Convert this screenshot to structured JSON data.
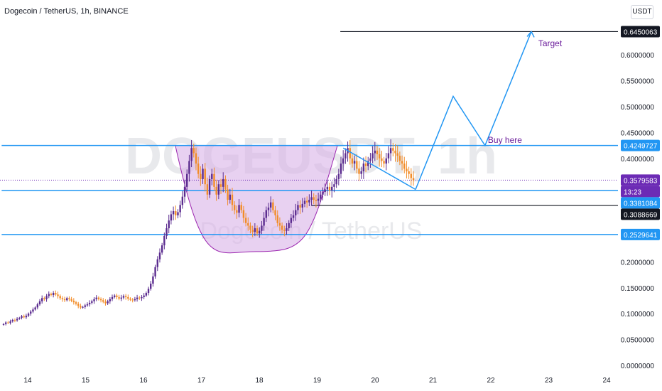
{
  "header": {
    "symbol_title": "Dogecoin / TetherUS, 1h, BINANCE",
    "currency_label": "USDT"
  },
  "watermark": {
    "ticker": "DOGEUSDT, 1h",
    "name": "Dogecoin / TetherUS"
  },
  "colors": {
    "candle_up": "#5b2c8f",
    "candle_down": "#f28c28",
    "level_line": "#2196f3",
    "black_line": "#131722",
    "cup_fill": "#d9b3e8",
    "cup_stroke": "#9c27b0",
    "annotation_text": "#6a1b9a",
    "current_price_tag": "#6c2bb5",
    "axis_text": "#131722"
  },
  "chart_data": {
    "type": "candlestick",
    "y_ticks": [
      "0.0000000",
      "0.0500000",
      "0.1000000",
      "0.1500000",
      "0.2000000",
      "0.4000000",
      "0.4500000",
      "0.5000000",
      "0.5500000",
      "0.6000000"
    ],
    "x_ticks": [
      "14",
      "15",
      "16",
      "17",
      "18",
      "19",
      "20",
      "21",
      "22",
      "23",
      "24"
    ],
    "y_range": [
      0,
      0.7
    ],
    "x_range": [
      13.55,
      24.5
    ],
    "price_tags": [
      {
        "label": "0.6450063",
        "value": 0.645,
        "style": "black"
      },
      {
        "label": "0.4249727",
        "value": 0.425,
        "style": "blue"
      },
      {
        "label": "0.3579583",
        "value": 0.358,
        "style": "purple"
      },
      {
        "label": "13:23",
        "value": 0.338,
        "style": "purple"
      },
      {
        "label": "0.3381084",
        "value": 0.338,
        "style": "blue"
      },
      {
        "label": "0.3088669",
        "value": 0.309,
        "style": "black"
      },
      {
        "label": "0.2529641",
        "value": 0.253,
        "style": "blue"
      }
    ],
    "horizontal_levels": [
      {
        "value": 0.425,
        "x_from": 13.55,
        "color": "blue"
      },
      {
        "value": 0.338,
        "x_from": 13.55,
        "color": "blue"
      },
      {
        "value": 0.253,
        "x_from": 13.55,
        "color": "blue"
      },
      {
        "value": 0.309,
        "x_from": 18.9,
        "color": "black"
      },
      {
        "value": 0.645,
        "x_from": 19.4,
        "color": "black"
      }
    ],
    "current_price": 0.358,
    "cup": {
      "x_start": 16.55,
      "x_end": 19.35,
      "rim": 0.425,
      "bottom": 0.22
    },
    "projection_path": [
      [
        20.7,
        0.34
      ],
      [
        21.35,
        0.52
      ],
      [
        21.9,
        0.425
      ],
      [
        22.7,
        0.645
      ]
    ],
    "handle_line": [
      [
        19.45,
        0.42
      ],
      [
        20.7,
        0.34
      ]
    ],
    "annotations": [
      {
        "text": "Buy here",
        "x": 21.95,
        "y": 0.43
      },
      {
        "text": "Target",
        "x": 22.82,
        "y": 0.617
      }
    ],
    "candles_close": [
      0.08,
      0.083,
      0.082,
      0.085,
      0.088,
      0.087,
      0.09,
      0.092,
      0.095,
      0.093,
      0.096,
      0.1,
      0.104,
      0.108,
      0.112,
      0.118,
      0.124,
      0.13,
      0.128,
      0.134,
      0.138,
      0.136,
      0.14,
      0.137,
      0.134,
      0.13,
      0.128,
      0.126,
      0.13,
      0.128,
      0.125,
      0.122,
      0.119,
      0.115,
      0.112,
      0.113,
      0.116,
      0.118,
      0.121,
      0.124,
      0.128,
      0.131,
      0.128,
      0.126,
      0.123,
      0.12,
      0.124,
      0.128,
      0.132,
      0.135,
      0.132,
      0.129,
      0.131,
      0.134,
      0.132,
      0.129,
      0.127,
      0.126,
      0.128,
      0.131,
      0.13,
      0.132,
      0.135,
      0.14,
      0.148,
      0.158,
      0.172,
      0.19,
      0.205,
      0.218,
      0.232,
      0.25,
      0.265,
      0.28,
      0.292,
      0.298,
      0.29,
      0.296,
      0.31,
      0.326,
      0.345,
      0.37,
      0.395,
      0.42,
      0.41,
      0.39,
      0.37,
      0.36,
      0.38,
      0.35,
      0.33,
      0.36,
      0.37,
      0.345,
      0.33,
      0.35,
      0.345,
      0.36,
      0.34,
      0.32,
      0.33,
      0.31,
      0.3,
      0.295,
      0.31,
      0.3,
      0.285,
      0.275,
      0.27,
      0.262,
      0.258,
      0.265,
      0.255,
      0.26,
      0.27,
      0.285,
      0.3,
      0.305,
      0.315,
      0.3,
      0.29,
      0.275,
      0.27,
      0.262,
      0.26,
      0.265,
      0.275,
      0.285,
      0.29,
      0.3,
      0.31,
      0.305,
      0.312,
      0.318,
      0.315,
      0.32,
      0.325,
      0.32,
      0.318,
      0.322,
      0.33,
      0.335,
      0.34,
      0.345,
      0.338,
      0.345,
      0.35,
      0.36,
      0.37,
      0.39,
      0.4,
      0.41,
      0.42,
      0.4,
      0.39,
      0.395,
      0.38,
      0.37,
      0.375,
      0.39,
      0.385,
      0.395,
      0.4,
      0.41,
      0.415,
      0.408,
      0.4,
      0.395,
      0.39,
      0.4,
      0.41,
      0.42,
      0.415,
      0.41,
      0.405,
      0.395,
      0.39,
      0.38,
      0.375,
      0.37,
      0.362,
      0.358
    ]
  }
}
